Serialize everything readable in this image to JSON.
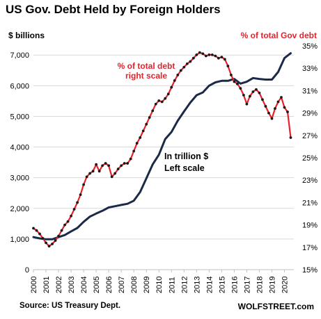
{
  "chart_data": {
    "type": "line",
    "title": "US Gov. Debt Held by Foreign Holders",
    "ylabel": "$ billions",
    "ylabel_right": "% of total Gov debt",
    "source": "Source: US Treasury Dept.",
    "brand": "WOLFSTREET.com",
    "annotations": {
      "pct_line_1": "% of total debt",
      "pct_line_2": "right scale",
      "amt_line_1": "In trillion $",
      "amt_line_2": "Left scale"
    },
    "x_ticks": [
      "2000",
      "2001",
      "2002",
      "2003",
      "2004",
      "2005",
      "2006",
      "2007",
      "2008",
      "2009",
      "2010",
      "2011",
      "2012",
      "2013",
      "2014",
      "2015",
      "2016",
      "2017",
      "2018",
      "2019",
      "2020"
    ],
    "y_left_ticks": [
      "0",
      "1,000",
      "2,000",
      "3,000",
      "4,000",
      "5,000",
      "6,000",
      "7,000"
    ],
    "y_right_ticks": [
      "15%",
      "17%",
      "19%",
      "21%",
      "23%",
      "25%",
      "27%",
      "29%",
      "31%",
      "33%",
      "35%"
    ],
    "ylim_left": [
      0,
      7300
    ],
    "ylim_right": [
      15,
      35
    ],
    "xlim": [
      2000,
      2020.75
    ],
    "grid": true,
    "series": [
      {
        "name": "In trillion $",
        "axis": "left",
        "color": "#1b2a47",
        "x": [
          2000,
          2000.5,
          2001,
          2001.5,
          2002,
          2002.5,
          2003,
          2003.5,
          2004,
          2004.5,
          2005,
          2005.5,
          2006,
          2006.5,
          2007,
          2007.5,
          2008,
          2008.5,
          2009,
          2009.5,
          2010,
          2010.5,
          2011,
          2011.5,
          2012,
          2012.5,
          2013,
          2013.5,
          2014,
          2014.5,
          2015,
          2015.5,
          2016,
          2016.5,
          2017,
          2017.5,
          2018,
          2018.5,
          2019,
          2019.5,
          2020,
          2020.5
        ],
        "y": [
          1060,
          1020,
          990,
          990,
          1060,
          1130,
          1250,
          1360,
          1560,
          1730,
          1830,
          1920,
          2030,
          2070,
          2110,
          2150,
          2250,
          2530,
          2980,
          3430,
          3750,
          4260,
          4490,
          4860,
          5160,
          5450,
          5690,
          5780,
          6000,
          6110,
          6160,
          6160,
          6220,
          6070,
          6130,
          6250,
          6220,
          6200,
          6200,
          6450,
          6900,
          7060
        ]
      },
      {
        "name": "% of total debt",
        "axis": "right",
        "color": "#e8202a",
        "marker_color": "#1a1a1a",
        "x": [
          2000,
          2000.25,
          2000.5,
          2000.75,
          2001,
          2001.25,
          2001.5,
          2001.75,
          2002,
          2002.25,
          2002.5,
          2002.75,
          2003,
          2003.25,
          2003.5,
          2003.75,
          2004,
          2004.25,
          2004.5,
          2004.75,
          2005,
          2005.25,
          2005.5,
          2005.75,
          2006,
          2006.25,
          2006.5,
          2006.75,
          2007,
          2007.25,
          2007.5,
          2007.75,
          2008,
          2008.25,
          2008.5,
          2008.75,
          2009,
          2009.25,
          2009.5,
          2009.75,
          2010,
          2010.25,
          2010.5,
          2010.75,
          2011,
          2011.25,
          2011.5,
          2011.75,
          2012,
          2012.25,
          2012.5,
          2012.75,
          2013,
          2013.25,
          2013.5,
          2013.75,
          2014,
          2014.25,
          2014.5,
          2014.75,
          2015,
          2015.25,
          2015.5,
          2015.75,
          2016,
          2016.25,
          2016.5,
          2016.75,
          2017,
          2017.25,
          2017.5,
          2017.75,
          2018,
          2018.25,
          2018.5,
          2018.75,
          2019,
          2019.25,
          2019.5,
          2019.75,
          2020,
          2020.25,
          2020.5
        ],
        "y": [
          18.7,
          18.5,
          18.2,
          17.8,
          17.4,
          17.1,
          17.3,
          17.6,
          18.0,
          18.5,
          19.0,
          19.3,
          19.8,
          20.4,
          21.0,
          21.7,
          22.6,
          23.3,
          23.6,
          23.8,
          24.4,
          23.8,
          24.3,
          24.5,
          24.3,
          23.3,
          23.6,
          24.0,
          24.3,
          24.5,
          24.5,
          24.9,
          25.6,
          26.3,
          26.8,
          27.4,
          28.0,
          28.6,
          29.2,
          29.8,
          30.1,
          30.0,
          30.3,
          30.7,
          31.3,
          31.9,
          32.4,
          32.8,
          33.1,
          33.4,
          33.6,
          33.9,
          34.2,
          34.4,
          34.3,
          34.1,
          34.2,
          34.2,
          34.1,
          33.9,
          34.0,
          33.8,
          33.2,
          32.4,
          31.8,
          31.6,
          31.2,
          30.6,
          29.8,
          30.5,
          30.9,
          31.1,
          30.8,
          30.2,
          29.6,
          29.0,
          28.5,
          29.4,
          30.0,
          30.4,
          29.5,
          29.1,
          26.8
        ]
      }
    ]
  }
}
